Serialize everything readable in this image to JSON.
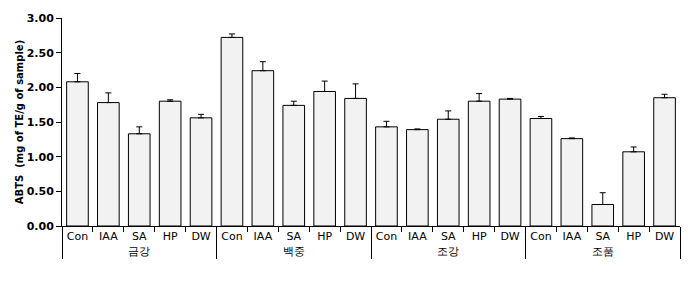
{
  "chart_data": {
    "type": "bar",
    "y_label": "ABTS  (mg of TE/g of sample)",
    "categories": [
      "Con",
      "IAA",
      "SA",
      "HP",
      "DW"
    ],
    "groups": [
      {
        "name": "금강",
        "values": [
          2.08,
          1.78,
          1.33,
          1.8,
          1.56
        ],
        "errors": [
          0.12,
          0.14,
          0.1,
          0.02,
          0.05
        ]
      },
      {
        "name": "백중",
        "values": [
          2.72,
          2.24,
          1.74,
          1.94,
          1.84
        ],
        "errors": [
          0.05,
          0.13,
          0.06,
          0.15,
          0.21
        ]
      },
      {
        "name": "조강",
        "values": [
          1.43,
          1.39,
          1.54,
          1.8,
          1.83
        ],
        "errors": [
          0.08,
          0.01,
          0.12,
          0.11,
          0.01
        ]
      },
      {
        "name": "조품",
        "values": [
          1.55,
          1.26,
          0.31,
          1.07,
          1.85
        ],
        "errors": [
          0.03,
          0.01,
          0.17,
          0.07,
          0.05
        ]
      }
    ],
    "color": "#f2f2f2",
    "ylim": [
      0,
      3
    ],
    "yticks": [
      {
        "value": 0,
        "label": "0.00"
      },
      {
        "value": 0.5,
        "label": "0.50"
      },
      {
        "value": 1,
        "label": "1.00"
      },
      {
        "value": 1.5,
        "label": "1.50"
      },
      {
        "value": 2,
        "label": "2.00"
      },
      {
        "value": 2.5,
        "label": "2.50"
      },
      {
        "value": 3,
        "label": "3.00"
      }
    ],
    "grid": false
  }
}
